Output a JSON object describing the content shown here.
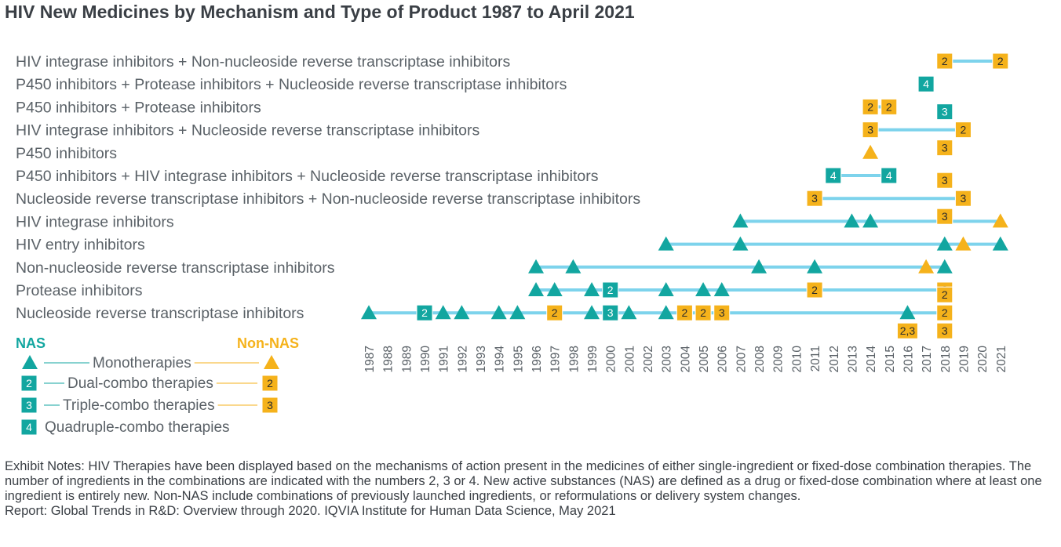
{
  "title": "HIV New Medicines by Mechanism and Type of Product 1987 to April 2021",
  "colors": {
    "nas": "#12a6a0",
    "non_nas": "#f5b21b",
    "line": "#7dd3ec",
    "text": "#5a6167",
    "title": "#3a3f45"
  },
  "legend": {
    "nas_label": "NAS",
    "non_nas_label": "Non-NAS",
    "items": [
      {
        "label": "Monotherapies",
        "marker": "triangle",
        "text": ""
      },
      {
        "label": "Dual-combo therapies",
        "marker": "square",
        "text": "2"
      },
      {
        "label": "Triple-combo therapies",
        "marker": "square",
        "text": "3"
      },
      {
        "label": "Quadruple-combo therapies",
        "marker": "square",
        "text": "4",
        "nas_only": true
      }
    ]
  },
  "notes": [
    "Exhibit Notes: HIV Therapies have been displayed based on the mechanisms of action present in the medicines of either single-ingredient or fixed-dose combination therapies. The number of ingredients in the combinations are indicated with the numbers 2, 3 or 4. New active substances (NAS) are defined as a drug or fixed-dose combination where at least one ingredient is entirely new. Non-NAS include combinations of previously launched ingredients, or reformulations or delivery system changes.",
    "Report: Global Trends in R&D: Overview through 2020. IQVIA Institute for Human Data Science, May 2021"
  ],
  "chart_data": {
    "type": "scatter",
    "x_ticks": [
      "1987",
      "1988",
      "1989",
      "1990",
      "1991",
      "1992",
      "1993",
      "1994",
      "1995",
      "1996",
      "1997",
      "1998",
      "1999",
      "2000",
      "2001",
      "2002",
      "2003",
      "2004",
      "2005",
      "2006",
      "2007",
      "2008",
      "2009",
      "2010",
      "2011",
      "2012",
      "2013",
      "2014",
      "2015",
      "2016",
      "2017",
      "2018",
      "2019",
      "2020",
      "2021"
    ],
    "xlim": [
      1987,
      2021
    ],
    "rows": [
      {
        "label": "HIV integrase inhibitors + Non-nucleoside reverse transcriptase inhibitors",
        "line": [
          2018,
          2021
        ],
        "points": [
          {
            "x": 2018,
            "type": "non-nas",
            "marker": "square",
            "text": "2"
          },
          {
            "x": 2021,
            "type": "non-nas",
            "marker": "square",
            "text": "2"
          }
        ]
      },
      {
        "label": "P450 inhibitors + Protease inhibitors + Nucleoside reverse transcriptase inhibitors",
        "line": null,
        "points": [
          {
            "x": 2017,
            "type": "nas",
            "marker": "square",
            "text": "4"
          }
        ]
      },
      {
        "label": "P450 inhibitors + Protease inhibitors",
        "line": [
          2014,
          2015
        ],
        "points": [
          {
            "x": 2014,
            "type": "non-nas",
            "marker": "square",
            "text": "2"
          },
          {
            "x": 2015,
            "type": "non-nas",
            "marker": "square",
            "text": "2"
          }
        ]
      },
      {
        "label": "HIV integrase inhibitors + Nucleoside reverse transcriptase inhibitors",
        "line": [
          2014,
          2019
        ],
        "points": [
          {
            "x": 2014,
            "type": "non-nas",
            "marker": "square",
            "text": "3"
          },
          {
            "x": 2018,
            "type": "nas",
            "marker": "square",
            "text": "3",
            "stack": -1
          },
          {
            "x": 2018,
            "type": "non-nas",
            "marker": "square",
            "text": "3",
            "stack": 1
          },
          {
            "x": 2019,
            "type": "non-nas",
            "marker": "square",
            "text": "2"
          }
        ]
      },
      {
        "label": "P450 inhibitors",
        "line": null,
        "points": [
          {
            "x": 2014,
            "type": "non-nas",
            "marker": "triangle",
            "text": ""
          }
        ]
      },
      {
        "label": "P450 inhibitors + HIV integrase inhibitors + Nucleoside reverse transcriptase inhibitors",
        "line": [
          2012,
          2015
        ],
        "points": [
          {
            "x": 2012,
            "type": "nas",
            "marker": "square",
            "text": "4"
          },
          {
            "x": 2015,
            "type": "nas",
            "marker": "square",
            "text": "4"
          }
        ]
      },
      {
        "label": "Nucleoside reverse transcriptase inhibitors + Non-nucleoside reverse transcriptase inhibitors",
        "line": [
          2011,
          2019
        ],
        "points": [
          {
            "x": 2011,
            "type": "non-nas",
            "marker": "square",
            "text": "3"
          },
          {
            "x": 2018,
            "type": "non-nas",
            "marker": "square",
            "text": "3",
            "stack": -1
          },
          {
            "x": 2018,
            "type": "non-nas",
            "marker": "square",
            "text": "3",
            "stack": 1
          },
          {
            "x": 2019,
            "type": "non-nas",
            "marker": "square",
            "text": "3"
          }
        ]
      },
      {
        "label": "HIV integrase inhibitors",
        "line": [
          2007,
          2021
        ],
        "points": [
          {
            "x": 2007,
            "type": "nas",
            "marker": "triangle",
            "text": ""
          },
          {
            "x": 2013,
            "type": "nas",
            "marker": "triangle",
            "text": ""
          },
          {
            "x": 2014,
            "type": "nas",
            "marker": "triangle",
            "text": ""
          },
          {
            "x": 2021,
            "type": "non-nas",
            "marker": "triangle",
            "text": ""
          }
        ]
      },
      {
        "label": "HIV entry inhibitors",
        "line": [
          2003,
          2021
        ],
        "points": [
          {
            "x": 2003,
            "type": "nas",
            "marker": "triangle",
            "text": ""
          },
          {
            "x": 2007,
            "type": "nas",
            "marker": "triangle",
            "text": ""
          },
          {
            "x": 2018,
            "type": "nas",
            "marker": "triangle",
            "text": ""
          },
          {
            "x": 2019,
            "type": "non-nas",
            "marker": "triangle",
            "text": ""
          },
          {
            "x": 2021,
            "type": "nas",
            "marker": "triangle",
            "text": ""
          }
        ]
      },
      {
        "label": "Non-nucleoside reverse transcriptase inhibitors",
        "line": [
          1996,
          2018
        ],
        "points": [
          {
            "x": 1996,
            "type": "nas",
            "marker": "triangle",
            "text": ""
          },
          {
            "x": 1998,
            "type": "nas",
            "marker": "triangle",
            "text": ""
          },
          {
            "x": 2008,
            "type": "nas",
            "marker": "triangle",
            "text": ""
          },
          {
            "x": 2011,
            "type": "nas",
            "marker": "triangle",
            "text": ""
          },
          {
            "x": 2017,
            "type": "non-nas",
            "marker": "triangle",
            "text": ""
          },
          {
            "x": 2018,
            "type": "nas",
            "marker": "triangle",
            "text": ""
          }
        ]
      },
      {
        "label": "Protease inhibitors",
        "line": [
          1996,
          2018
        ],
        "points": [
          {
            "x": 1996,
            "type": "nas",
            "marker": "triangle",
            "text": ""
          },
          {
            "x": 1997,
            "type": "nas",
            "marker": "triangle",
            "text": ""
          },
          {
            "x": 1999,
            "type": "nas",
            "marker": "triangle",
            "text": ""
          },
          {
            "x": 2000,
            "type": "nas",
            "marker": "square",
            "text": "2"
          },
          {
            "x": 2003,
            "type": "nas",
            "marker": "triangle",
            "text": ""
          },
          {
            "x": 2005,
            "type": "nas",
            "marker": "triangle",
            "text": ""
          },
          {
            "x": 2006,
            "type": "nas",
            "marker": "triangle",
            "text": ""
          },
          {
            "x": 2011,
            "type": "non-nas",
            "marker": "square",
            "text": "2"
          },
          {
            "x": 2018,
            "type": "non-nas",
            "marker": "square",
            "text": "2"
          }
        ]
      },
      {
        "label": "Nucleoside reverse transcriptase inhibitors",
        "line": [
          1987,
          2018
        ],
        "points": [
          {
            "x": 1987,
            "type": "nas",
            "marker": "triangle",
            "text": ""
          },
          {
            "x": 1990,
            "type": "nas",
            "marker": "square",
            "text": "2"
          },
          {
            "x": 1991,
            "type": "nas",
            "marker": "triangle",
            "text": ""
          },
          {
            "x": 1992,
            "type": "nas",
            "marker": "triangle",
            "text": ""
          },
          {
            "x": 1994,
            "type": "nas",
            "marker": "triangle",
            "text": ""
          },
          {
            "x": 1995,
            "type": "nas",
            "marker": "triangle",
            "text": ""
          },
          {
            "x": 1997,
            "type": "non-nas",
            "marker": "square",
            "text": "2"
          },
          {
            "x": 1999,
            "type": "nas",
            "marker": "triangle",
            "text": ""
          },
          {
            "x": 2000,
            "type": "nas",
            "marker": "square",
            "text": "3"
          },
          {
            "x": 2001,
            "type": "nas",
            "marker": "triangle",
            "text": ""
          },
          {
            "x": 2003,
            "type": "nas",
            "marker": "triangle",
            "text": ""
          },
          {
            "x": 2004,
            "type": "non-nas",
            "marker": "square",
            "text": "2"
          },
          {
            "x": 2005,
            "type": "non-nas",
            "marker": "square",
            "text": "2"
          },
          {
            "x": 2006,
            "type": "non-nas",
            "marker": "square",
            "text": "3"
          },
          {
            "x": 2016,
            "type": "nas",
            "marker": "triangle",
            "text": ""
          },
          {
            "x": 2016,
            "type": "non-nas",
            "marker": "square",
            "text": "2,3",
            "stack": 1,
            "wide": true
          },
          {
            "x": 2018,
            "type": "non-nas",
            "marker": "square",
            "text": "2",
            "stack": -1
          },
          {
            "x": 2018,
            "type": "non-nas",
            "marker": "square",
            "text": "2",
            "stack": 0
          },
          {
            "x": 2018,
            "type": "non-nas",
            "marker": "square",
            "text": "3",
            "stack": 1
          }
        ]
      }
    ]
  }
}
